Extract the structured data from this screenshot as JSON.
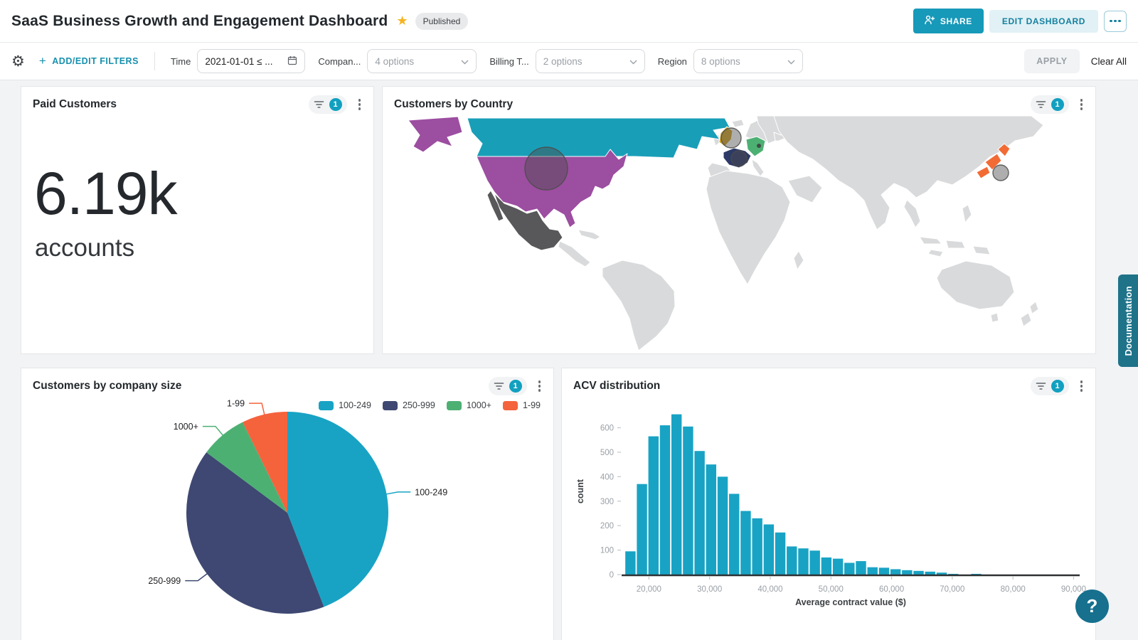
{
  "header": {
    "title": "SaaS Business Growth and Engagement Dashboard",
    "status_badge": "Published",
    "share_label": "SHARE",
    "edit_dashboard_label": "EDIT DASHBOARD"
  },
  "filter_bar": {
    "plus": "+",
    "add_edit_filters_label": "ADD/EDIT FILTERS",
    "apply_label": "APPLY",
    "clear_all_label": "Clear All",
    "filters": [
      {
        "label": "Time",
        "value": "2021-01-01 ≤ ...",
        "type": "date"
      },
      {
        "label": "Compan...",
        "value": "4 options",
        "type": "select"
      },
      {
        "label": "Billing T...",
        "value": "2 options",
        "type": "select"
      },
      {
        "label": "Region",
        "value": "8 options",
        "type": "select"
      }
    ]
  },
  "tiles": {
    "paid_customers": {
      "title": "Paid Customers",
      "filter_count": "1",
      "value": "6.19k",
      "unit": "accounts"
    },
    "customers_by_country": {
      "title": "Customers by Country",
      "filter_count": "1"
    },
    "company_size": {
      "title": "Customers by company size",
      "filter_count": "1"
    },
    "acv": {
      "title": "ACV distribution",
      "filter_count": "1"
    }
  },
  "side": {
    "documentation_label": "Documentation",
    "help_label": "?"
  },
  "chart_data": [
    {
      "type": "pie",
      "name": "company_size_pie",
      "title": "Customers by company size",
      "labels": [
        "100-249",
        "250-999",
        "1000+",
        "1-99"
      ],
      "values": [
        44.1,
        41.1,
        7.5,
        7.3
      ],
      "colors": [
        "#18A3C4",
        "#3E4872",
        "#4DB073",
        "#F4633C"
      ],
      "legend_position": "top-right",
      "start_angle_deg": 0,
      "direction": "clockwise"
    },
    {
      "type": "bar",
      "name": "acv_histogram",
      "title": "ACV distribution",
      "xlabel": "Average contract value ($)",
      "ylabel": "count",
      "bar_color": "#18A3C4",
      "bin_start": 16000,
      "bin_width": 1900,
      "values": [
        95,
        370,
        565,
        610,
        655,
        605,
        505,
        450,
        400,
        330,
        260,
        230,
        205,
        172,
        115,
        107,
        98,
        70,
        65,
        48,
        55,
        30,
        28,
        22,
        18,
        15,
        12,
        8,
        3,
        0,
        3
      ],
      "xlim": [
        15500,
        91000
      ],
      "ylim": [
        0,
        680
      ],
      "xticks": [
        20000,
        30000,
        40000,
        50000,
        60000,
        70000,
        80000,
        90000
      ],
      "yticks": [
        0,
        100,
        200,
        300,
        400,
        500,
        600
      ],
      "grid": false,
      "legend": false
    },
    {
      "type": "map",
      "name": "customers_by_country",
      "title": "Customers by Country",
      "highlighted_countries": [
        {
          "country": "canada",
          "color": "#199EB8"
        },
        {
          "country": "united-states",
          "color": "#9C4EA0"
        },
        {
          "country": "mexico",
          "color": "#58585B"
        },
        {
          "country": "united-kingdom",
          "color": "#D0A227"
        },
        {
          "country": "france",
          "color": "#2E3A66"
        },
        {
          "country": "germany",
          "color": "#4DB073"
        },
        {
          "country": "japan",
          "color": "#F26B35"
        }
      ],
      "default_country_color": "#D9DADB",
      "markers": [
        {
          "cx": 216,
          "cy": 75,
          "r": 30
        },
        {
          "cx": 476,
          "cy": 32,
          "r": 14
        },
        {
          "cx": 487,
          "cy": 61,
          "r": 11
        },
        {
          "cx": 855,
          "cy": 81,
          "r": 11
        },
        {
          "cx": 515,
          "cy": 43,
          "r": 3,
          "solid": true
        }
      ]
    }
  ]
}
